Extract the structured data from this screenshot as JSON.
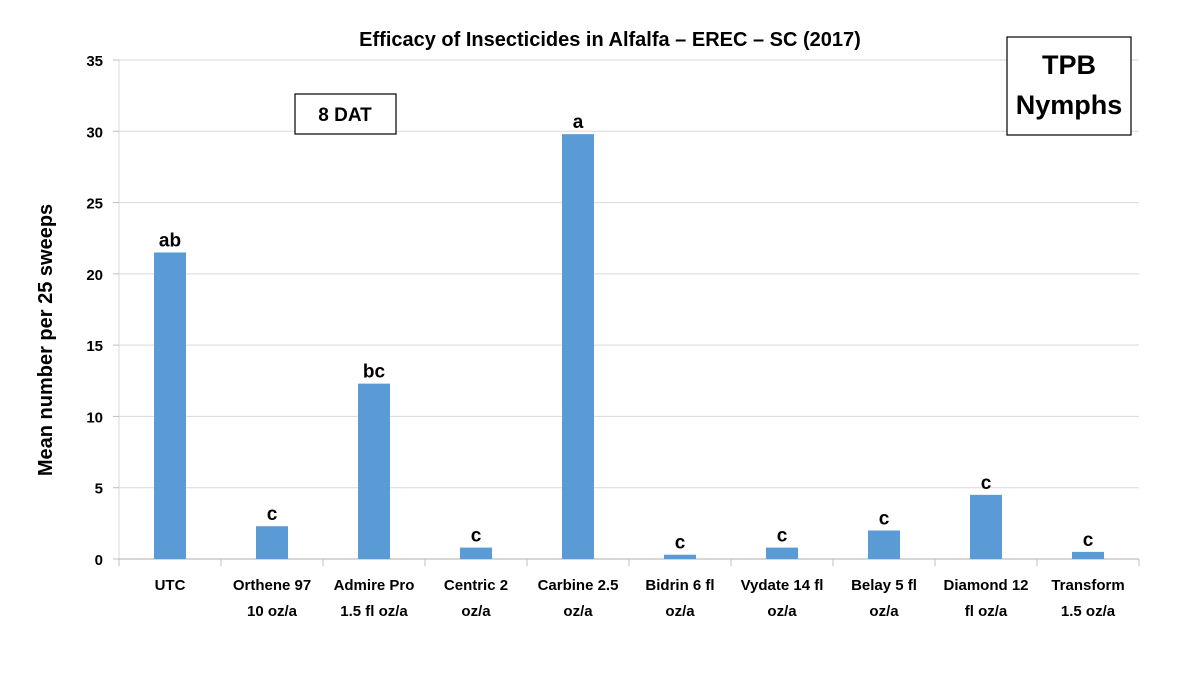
{
  "chart_data": {
    "type": "bar",
    "title": "Efficacy of Insecticides in Alfalfa – EREC – SC (2017)",
    "xlabel": "",
    "ylabel": "Mean number per 25 sweeps",
    "ylim": [
      0,
      35
    ],
    "yticks": [
      0,
      5,
      10,
      15,
      20,
      25,
      30,
      35
    ],
    "grid": true,
    "categories": [
      [
        "UTC"
      ],
      [
        "Orthene 97",
        "10 oz/a"
      ],
      [
        "Admire Pro",
        "1.5 fl oz/a"
      ],
      [
        "Centric 2",
        "oz/a"
      ],
      [
        "Carbine 2.5",
        "oz/a"
      ],
      [
        "Bidrin 6 fl",
        "oz/a"
      ],
      [
        "Vydate 14 fl",
        "oz/a"
      ],
      [
        "Belay 5 fl",
        "oz/a"
      ],
      [
        "Diamond 12",
        "fl oz/a"
      ],
      [
        "Transform",
        "1.5 oz/a"
      ]
    ],
    "values": [
      21.5,
      2.3,
      12.3,
      0.8,
      29.8,
      0.3,
      0.8,
      2.0,
      4.5,
      0.5
    ],
    "data_labels": [
      "ab",
      "c",
      "bc",
      "c",
      "a",
      "c",
      "c",
      "c",
      "c",
      "c"
    ],
    "annotations": [
      "8 DAT",
      "TPB",
      "Nymphs"
    ],
    "bar_color": "#5B9BD5",
    "grid_color": "#D9D9D9"
  }
}
